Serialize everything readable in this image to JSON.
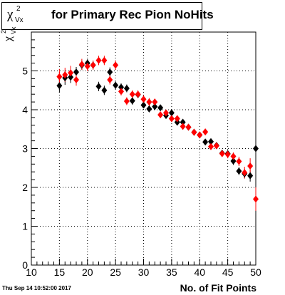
{
  "chart_data": {
    "type": "scatter",
    "title": {
      "symbol": "χ",
      "superscript": "2",
      "subscript": "Vx",
      "text": "for Primary Rec Pion NoHits"
    },
    "ylabel": {
      "symbol": "χ",
      "superscript": "2",
      "subscript": "Vx"
    },
    "xlabel": "No. of Fit Points",
    "xlim": [
      10,
      50
    ],
    "ylim": [
      0,
      6
    ],
    "x_ticks": [
      "10",
      "15",
      "20",
      "25",
      "30",
      "35",
      "40",
      "45",
      "50"
    ],
    "y_ticks": [
      "0",
      "1",
      "2",
      "3",
      "4",
      "5"
    ],
    "grid": true,
    "series": [
      {
        "color": "#000000",
        "points": [
          {
            "x": 15,
            "y": 4.62,
            "err": 0.18
          },
          {
            "x": 16,
            "y": 4.82,
            "err": 0.18
          },
          {
            "x": 17,
            "y": 4.84,
            "err": 0.15
          },
          {
            "x": 18,
            "y": 4.97,
            "err": 0.13
          },
          {
            "x": 19,
            "y": 5.15,
            "err": 0.12
          },
          {
            "x": 20,
            "y": 5.2,
            "err": 0.1
          },
          {
            "x": 21,
            "y": 5.15,
            "err": 0.1
          },
          {
            "x": 22,
            "y": 4.6,
            "err": 0.12
          },
          {
            "x": 23,
            "y": 4.5,
            "err": 0.12
          },
          {
            "x": 24,
            "y": 4.97,
            "err": 0.12
          },
          {
            "x": 25,
            "y": 4.63,
            "err": 0.1
          },
          {
            "x": 26,
            "y": 4.58,
            "err": 0.1
          },
          {
            "x": 27,
            "y": 4.55,
            "err": 0.1
          },
          {
            "x": 28,
            "y": 4.23,
            "err": 0.1
          },
          {
            "x": 29,
            "y": 4.39,
            "err": 0.08
          },
          {
            "x": 30,
            "y": 4.12,
            "err": 0.08
          },
          {
            "x": 31,
            "y": 4.02,
            "err": 0.08
          },
          {
            "x": 32,
            "y": 4.08,
            "err": 0.07
          },
          {
            "x": 33,
            "y": 4.05,
            "err": 0.07
          },
          {
            "x": 34,
            "y": 3.85,
            "err": 0.07
          },
          {
            "x": 35,
            "y": 3.92,
            "err": 0.07
          },
          {
            "x": 36,
            "y": 3.68,
            "err": 0.07
          },
          {
            "x": 37,
            "y": 3.68,
            "err": 0.07
          },
          {
            "x": 38,
            "y": 3.55,
            "err": 0.07
          },
          {
            "x": 39,
            "y": 3.42,
            "err": 0.07
          },
          {
            "x": 40,
            "y": 3.35,
            "err": 0.07
          },
          {
            "x": 41,
            "y": 3.17,
            "err": 0.07
          },
          {
            "x": 42,
            "y": 3.18,
            "err": 0.07
          },
          {
            "x": 43,
            "y": 3.08,
            "err": 0.07
          },
          {
            "x": 44,
            "y": 2.88,
            "err": 0.07
          },
          {
            "x": 45,
            "y": 2.87,
            "err": 0.08
          },
          {
            "x": 46,
            "y": 2.68,
            "err": 0.1
          },
          {
            "x": 47,
            "y": 2.42,
            "err": 0.1
          },
          {
            "x": 48,
            "y": 2.35,
            "err": 0.12
          },
          {
            "x": 49,
            "y": 2.3,
            "err": 0.15
          },
          {
            "x": 50,
            "y": 3.0,
            "err": 0.9
          }
        ]
      },
      {
        "color": "#ff0000",
        "points": [
          {
            "x": 15,
            "y": 4.85,
            "err": 0.2
          },
          {
            "x": 16,
            "y": 4.9,
            "err": 0.18
          },
          {
            "x": 17,
            "y": 4.95,
            "err": 0.18
          },
          {
            "x": 18,
            "y": 4.77,
            "err": 0.15
          },
          {
            "x": 19,
            "y": 5.17,
            "err": 0.14
          },
          {
            "x": 20,
            "y": 5.12,
            "err": 0.13
          },
          {
            "x": 21,
            "y": 5.15,
            "err": 0.12
          },
          {
            "x": 22,
            "y": 5.27,
            "err": 0.12
          },
          {
            "x": 23,
            "y": 5.27,
            "err": 0.12
          },
          {
            "x": 24,
            "y": 4.77,
            "err": 0.12
          },
          {
            "x": 25,
            "y": 5.15,
            "err": 0.12
          },
          {
            "x": 26,
            "y": 4.47,
            "err": 0.1
          },
          {
            "x": 27,
            "y": 4.22,
            "err": 0.1
          },
          {
            "x": 28,
            "y": 4.4,
            "err": 0.1
          },
          {
            "x": 29,
            "y": 4.4,
            "err": 0.1
          },
          {
            "x": 30,
            "y": 4.27,
            "err": 0.1
          },
          {
            "x": 31,
            "y": 4.2,
            "err": 0.1
          },
          {
            "x": 32,
            "y": 4.2,
            "err": 0.08
          },
          {
            "x": 33,
            "y": 3.87,
            "err": 0.08
          },
          {
            "x": 34,
            "y": 3.92,
            "err": 0.08
          },
          {
            "x": 35,
            "y": 3.77,
            "err": 0.08
          },
          {
            "x": 36,
            "y": 3.77,
            "err": 0.08
          },
          {
            "x": 37,
            "y": 3.57,
            "err": 0.08
          },
          {
            "x": 38,
            "y": 3.55,
            "err": 0.08
          },
          {
            "x": 39,
            "y": 3.42,
            "err": 0.08
          },
          {
            "x": 40,
            "y": 3.35,
            "err": 0.08
          },
          {
            "x": 41,
            "y": 3.43,
            "err": 0.08
          },
          {
            "x": 42,
            "y": 3.05,
            "err": 0.08
          },
          {
            "x": 43,
            "y": 3.07,
            "err": 0.08
          },
          {
            "x": 44,
            "y": 2.87,
            "err": 0.08
          },
          {
            "x": 45,
            "y": 2.85,
            "err": 0.1
          },
          {
            "x": 46,
            "y": 2.8,
            "err": 0.1
          },
          {
            "x": 47,
            "y": 2.67,
            "err": 0.12
          },
          {
            "x": 48,
            "y": 2.38,
            "err": 0.15
          },
          {
            "x": 49,
            "y": 2.55,
            "err": 0.2
          },
          {
            "x": 50,
            "y": 1.7,
            "err": 0.3
          }
        ]
      }
    ]
  },
  "footer": {
    "timestamp": "Thu Sep 14 10:52:00 2017"
  }
}
